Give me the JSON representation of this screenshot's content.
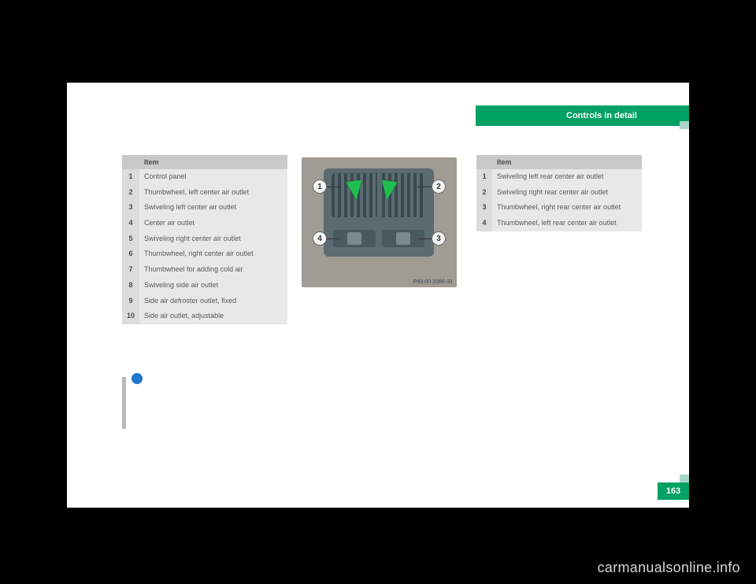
{
  "header": {
    "title": "Controls in detail",
    "bg": "#00a264"
  },
  "page_number": "163",
  "watermark": "carmanualsonline.info",
  "image": {
    "code": "P83.00-2086-31",
    "callouts": [
      "1",
      "2",
      "3",
      "4"
    ]
  },
  "table_left": {
    "header_num": "",
    "header_label": "Item",
    "rows": [
      {
        "n": "1",
        "t": "Control panel"
      },
      {
        "n": "2",
        "t": "Thumbwheel, left center air outlet"
      },
      {
        "n": "3",
        "t": "Swiveling left center air outlet"
      },
      {
        "n": "4",
        "t": "Center air outlet"
      },
      {
        "n": "5",
        "t": "Swiveling right center air outlet"
      },
      {
        "n": "6",
        "t": "Thumbwheel, right center air outlet"
      },
      {
        "n": "7",
        "t": "Thumbwheel for adding cold air"
      },
      {
        "n": "8",
        "t": "Swiveling side air outlet"
      },
      {
        "n": "9",
        "t": "Side air defroster outlet, fixed"
      },
      {
        "n": "10",
        "t": "Side air outlet, adjustable"
      }
    ]
  },
  "table_right": {
    "header_num": "",
    "header_label": "Item",
    "rows": [
      {
        "n": "1",
        "t": "Swiveling left rear center air outlet"
      },
      {
        "n": "2",
        "t": "Swiveling right rear center air outlet"
      },
      {
        "n": "3",
        "t": "Thumbwheel, right rear center air outlet"
      },
      {
        "n": "4",
        "t": "Thumbwheel, left rear center air outlet"
      }
    ]
  }
}
